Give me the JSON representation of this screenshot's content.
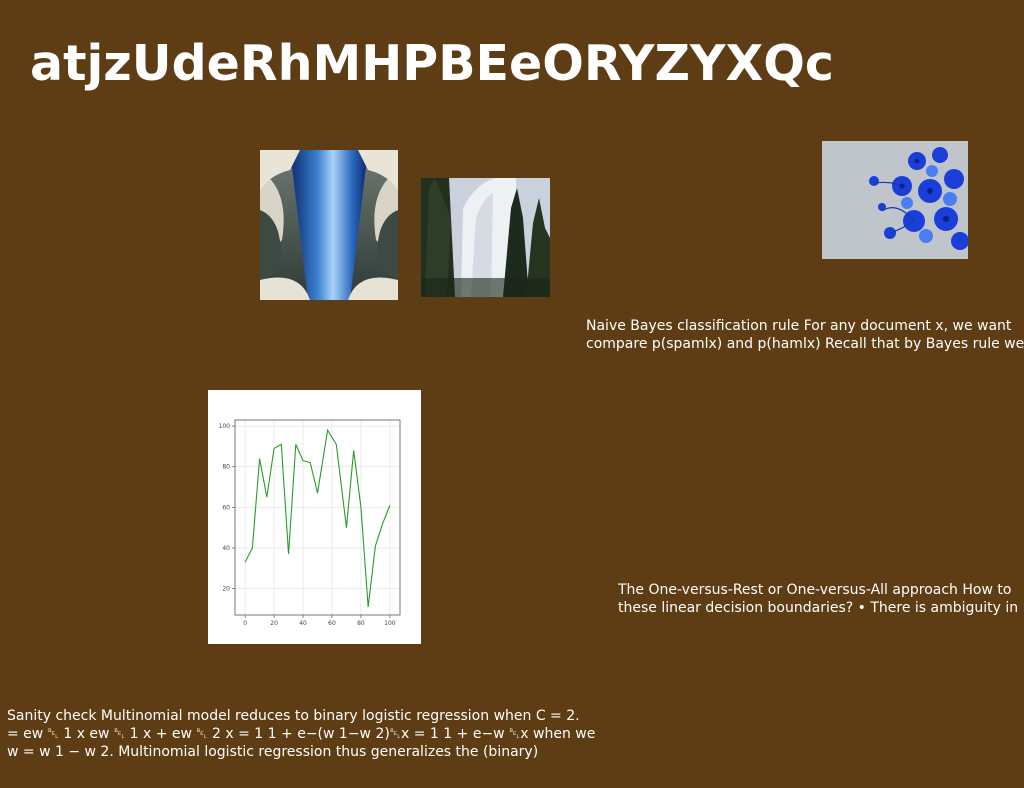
{
  "page": {
    "title": "atjzUdeRhMHPBEeORYZYXQc",
    "background_color": "#5e3d15"
  },
  "photos": [
    {
      "name": "architecture-photo",
      "description_icon": "blue-glass-atrium-photo"
    },
    {
      "name": "cliff-photo",
      "description_icon": "granite-cliff-trees-photo"
    },
    {
      "name": "flowers-photo",
      "description_icon": "blue-flowers-photo"
    }
  ],
  "text_blocks": [
    {
      "lines": [
        "Naive Bayes classification rule For any document x, we want",
        "compare p(spamlx) and p(hamlx) Recall that by Bayes rule we"
      ]
    },
    {
      "lines": [
        "The One-versus-Rest or One-versus-All approach How to",
        "these linear decision boundaries? • There is ambiguity in"
      ]
    },
    {
      "lines": [
        "Sanity check Multinomial model reduces to binary logistic regression when C = 2.",
        "= ew ␇ 1 x ew ␇ 1 x + ew ␇ 2 x = 1 1 + e−(w 1−w 2)␇x = 1 1 + e−w ␇x when we",
        "w = w 1 − w 2. Multinomial logistic regression thus generalizes the (binary)"
      ]
    }
  ],
  "chart_data": {
    "type": "line",
    "x": [
      0,
      5,
      10,
      15,
      20,
      25,
      30,
      35,
      40,
      45,
      50,
      55,
      60,
      65,
      70,
      75,
      80,
      85,
      90,
      95,
      100
    ],
    "series": [
      {
        "values": [
          33,
          40,
          84,
          65,
          89,
          91,
          37,
          91,
          83,
          82,
          67,
          98,
          91,
          50,
          88,
          60,
          11,
          41,
          52,
          61
        ],
        "x": [
          0,
          5,
          10,
          15,
          20,
          25,
          30,
          35,
          40,
          45,
          50,
          57,
          63,
          70,
          75,
          80,
          85,
          90,
          95,
          100
        ],
        "color": "#2a9a2a"
      }
    ],
    "xticks": [
      "0",
      "20",
      "40",
      "60",
      "80",
      "100"
    ],
    "yticks": [
      "20",
      "40",
      "60",
      "80",
      "100"
    ],
    "xlim": [
      -7,
      107
    ],
    "ylim": [
      7,
      103
    ],
    "grid": true,
    "title": "",
    "xlabel": "",
    "ylabel": ""
  }
}
